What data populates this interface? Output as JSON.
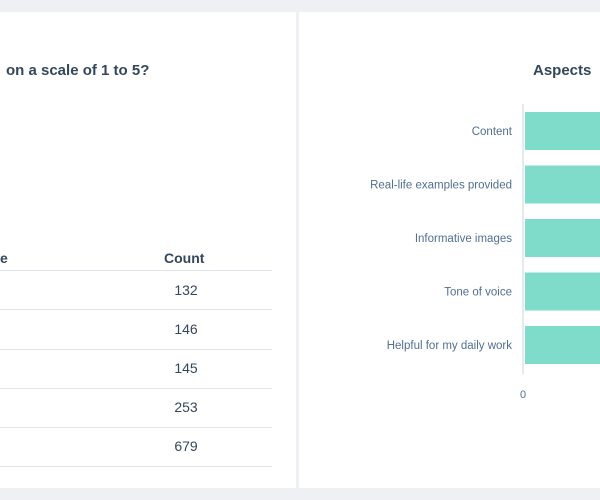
{
  "left_panel": {
    "title_fragment": "on a scale of 1 to 5?",
    "table": {
      "header_left_fragment": "e",
      "header_count": "Count",
      "rows": [
        {
          "count": "132"
        },
        {
          "count": "146"
        },
        {
          "count": "145"
        },
        {
          "count": "253"
        },
        {
          "count": "679"
        }
      ]
    }
  },
  "right_panel": {
    "title_fragment": "Aspects",
    "chart_data": {
      "type": "bar",
      "orientation": "horizontal",
      "categories": [
        "Content",
        "Real-life examples provided",
        "Informative images",
        "Tone of voice",
        "Helpful for my daily work"
      ],
      "x_tick_labels": [
        "0"
      ],
      "bar_color": "#7fdccb"
    }
  }
}
